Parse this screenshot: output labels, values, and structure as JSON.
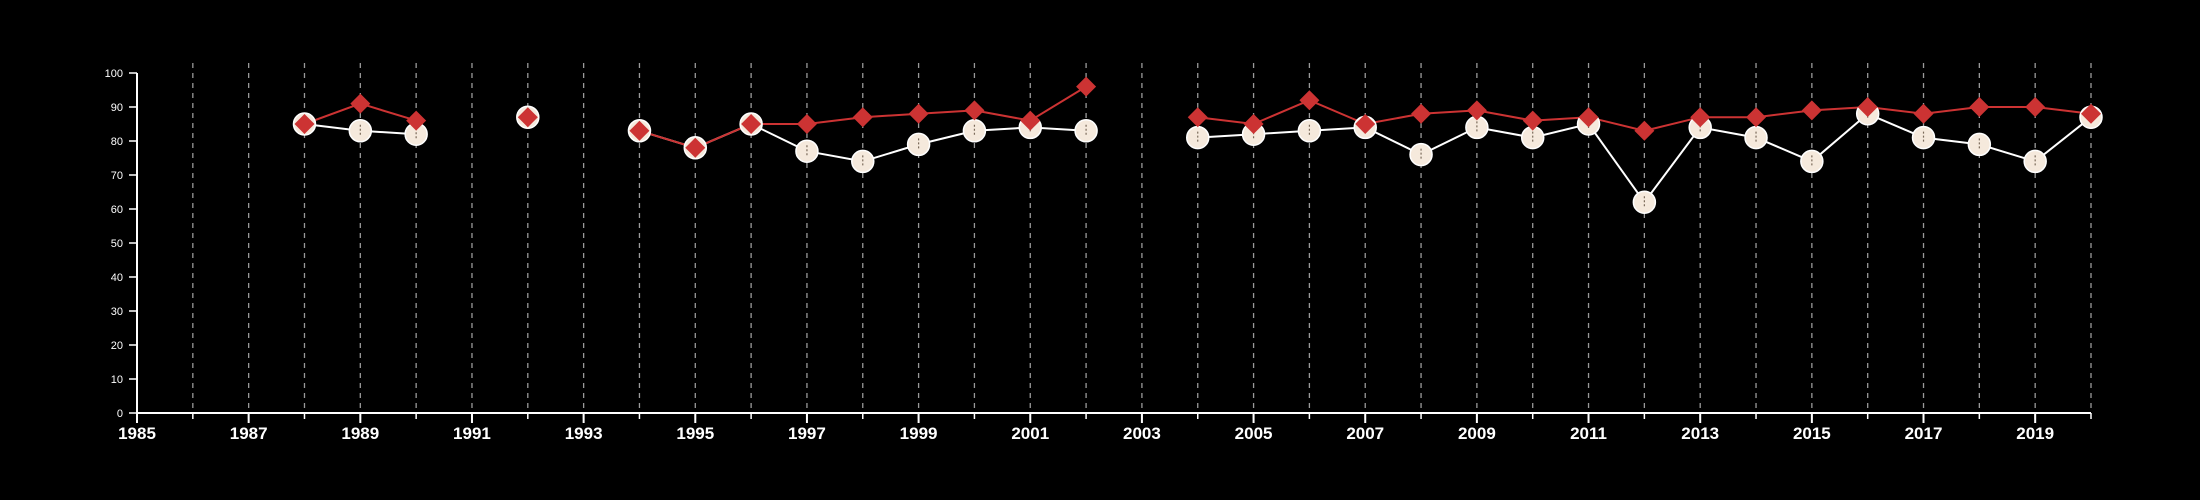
{
  "chart_data": {
    "type": "line",
    "title": "",
    "xlabel": "",
    "ylabel": "",
    "xlim": [
      1985,
      2020
    ],
    "ylim": [
      0,
      100
    ],
    "x_ticks": [
      "1985",
      "1987",
      "1989",
      "1991",
      "1993",
      "1995",
      "1997",
      "1999",
      "2001",
      "2003",
      "2005",
      "2007",
      "2009",
      "2011",
      "2013",
      "2015",
      "2017",
      "2019"
    ],
    "y_ticks": [
      "0",
      "10",
      "20",
      "30",
      "40",
      "50",
      "60",
      "70",
      "80",
      "90",
      "100"
    ],
    "grid": "vertical dashed lines at each year",
    "series": [
      {
        "marker": "circle",
        "color": "#f5e9dc",
        "line_color": "#ffffff",
        "points": [
          [
            1988,
            85
          ],
          [
            1989,
            83
          ],
          [
            1990,
            82
          ],
          [
            1992,
            87
          ],
          [
            1994,
            83
          ],
          [
            1995,
            78
          ],
          [
            1996,
            85
          ],
          [
            1997,
            77
          ],
          [
            1998,
            74
          ],
          [
            1999,
            79
          ],
          [
            2000,
            83
          ],
          [
            2001,
            84
          ],
          [
            2002,
            83
          ],
          [
            2004,
            81
          ],
          [
            2005,
            82
          ],
          [
            2006,
            83
          ],
          [
            2007,
            84
          ],
          [
            2008,
            76
          ],
          [
            2009,
            84
          ],
          [
            2010,
            81
          ],
          [
            2011,
            85
          ],
          [
            2012,
            62
          ],
          [
            2013,
            84
          ],
          [
            2014,
            81
          ],
          [
            2015,
            74
          ],
          [
            2016,
            88
          ],
          [
            2017,
            81
          ],
          [
            2018,
            79
          ],
          [
            2019,
            74
          ],
          [
            2020,
            87
          ]
        ]
      },
      {
        "marker": "diamond",
        "color": "#cc3333",
        "line_color": "#cc3333",
        "points": [
          [
            1988,
            85
          ],
          [
            1989,
            91
          ],
          [
            1990,
            86
          ],
          [
            1992,
            87
          ],
          [
            1994,
            83
          ],
          [
            1995,
            78
          ],
          [
            1996,
            85
          ],
          [
            1997,
            85
          ],
          [
            1998,
            87
          ],
          [
            1999,
            88
          ],
          [
            2000,
            89
          ],
          [
            2001,
            86
          ],
          [
            2002,
            96
          ],
          [
            2004,
            87
          ],
          [
            2005,
            85
          ],
          [
            2006,
            92
          ],
          [
            2007,
            85
          ],
          [
            2008,
            88
          ],
          [
            2009,
            89
          ],
          [
            2010,
            86
          ],
          [
            2011,
            87
          ],
          [
            2012,
            83
          ],
          [
            2013,
            87
          ],
          [
            2014,
            87
          ],
          [
            2015,
            89
          ],
          [
            2016,
            90
          ],
          [
            2017,
            88
          ],
          [
            2018,
            90
          ],
          [
            2019,
            90
          ],
          [
            2020,
            88
          ]
        ]
      }
    ]
  }
}
